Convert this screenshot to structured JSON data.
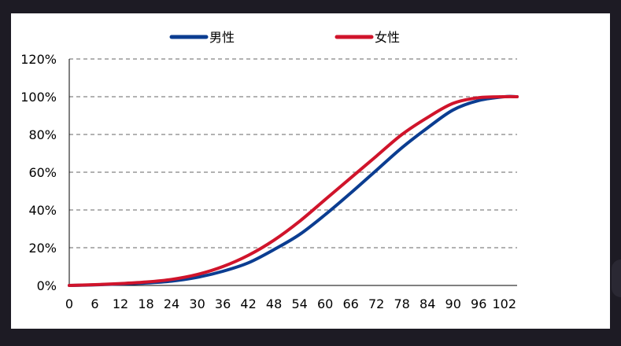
{
  "chart_data": {
    "type": "line",
    "title": "",
    "xlabel": "",
    "ylabel": "",
    "x_ticks": [
      "0",
      "6",
      "12",
      "18",
      "24",
      "30",
      "36",
      "42",
      "48",
      "54",
      "60",
      "66",
      "72",
      "78",
      "84",
      "90",
      "96",
      "102"
    ],
    "xlim": [
      0,
      105
    ],
    "y_ticks": [
      "0%",
      "20%",
      "40%",
      "60%",
      "80%",
      "100%",
      "120%"
    ],
    "ylim": [
      0,
      120
    ],
    "grid": "horizontal dashed",
    "legend_position": "top",
    "x": [
      0,
      6,
      12,
      18,
      24,
      30,
      36,
      42,
      48,
      54,
      60,
      66,
      72,
      78,
      84,
      90,
      96,
      102,
      105
    ],
    "series": [
      {
        "name": "男性",
        "color": "#0b3d91",
        "values": [
          0,
          0.3,
          0.8,
          1.3,
          2.3,
          4.3,
          7.5,
          12,
          19,
          27,
          37.5,
          49,
          61,
          73,
          83.5,
          93,
          98,
          100,
          100
        ]
      },
      {
        "name": "女性",
        "color": "#d0142b",
        "values": [
          0,
          0.4,
          1,
          1.8,
          3.2,
          5.8,
          10,
          16,
          24,
          34,
          45.5,
          57,
          68.5,
          80,
          89,
          96.5,
          99.5,
          100,
          100
        ]
      }
    ]
  }
}
